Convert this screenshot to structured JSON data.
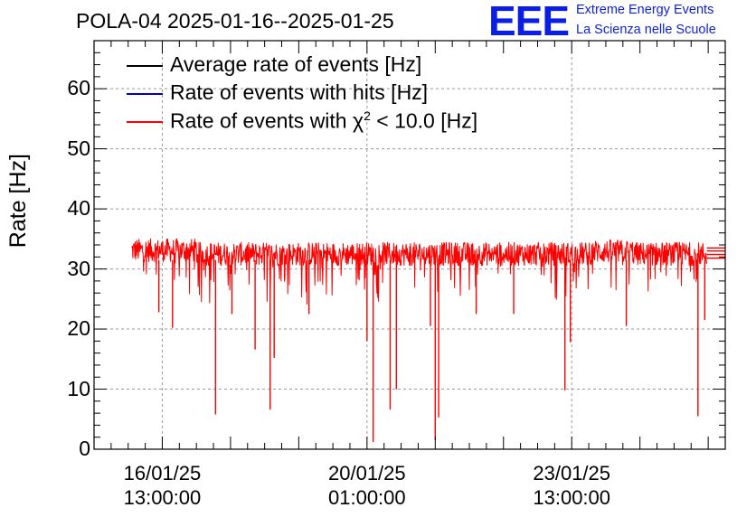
{
  "header": {
    "title": "POLA-04 2025-01-16--2025-01-25",
    "logo_text": "EEE",
    "logo_line1": "Extreme Energy Events",
    "logo_line2": "La Scienza nelle Scuole"
  },
  "colors": {
    "average": "#000000",
    "hits": "#0000cc",
    "chi2": "#ff0000",
    "logo": "#0b1ee8",
    "grid": "#9a9a9a"
  },
  "chart_data": {
    "type": "line",
    "title": "POLA-04 2025-01-16--2025-01-25",
    "ylabel": "Rate [Hz]",
    "xlabel": "",
    "ylim": [
      0,
      68
    ],
    "xlim_days": [
      0,
      9.25
    ],
    "grid": true,
    "yticks": [
      "0",
      "10",
      "20",
      "30",
      "40",
      "50",
      "60"
    ],
    "ytick_values": [
      0,
      10,
      20,
      30,
      40,
      50,
      60
    ],
    "xticks": [
      {
        "day": 1.0,
        "line1": "16/01/25",
        "line2": "13:00:00"
      },
      {
        "day": 4.0,
        "line1": "20/01/25",
        "line2": "01:00:00"
      },
      {
        "day": 7.0,
        "line1": "23/01/25",
        "line2": "13:00:00"
      }
    ],
    "legend": [
      {
        "name": "Average rate of events [Hz]",
        "color": "#000000"
      },
      {
        "name": "Rate of events with hits [Hz]",
        "color": "#0000cc"
      },
      {
        "name_pre": "Rate of events with ",
        "symbol": "χ",
        "sup": "2",
        "name_post": " < 10.0 [Hz]",
        "color": "#ff0000"
      }
    ],
    "series": [
      {
        "name": "Rate of events with χ2 < 10.0 [Hz]",
        "color": "#ff0000",
        "x_start_day": 0.55,
        "x_end_day": 8.98,
        "baseline_hz": 32.5,
        "band_hz": [
          30.5,
          34.5
        ],
        "dips": [
          {
            "day": 1.78,
            "value": 5.8
          },
          {
            "day": 2.02,
            "value": 22.5
          },
          {
            "day": 2.36,
            "value": 16.6
          },
          {
            "day": 2.58,
            "value": 6.6
          },
          {
            "day": 2.64,
            "value": 15.2
          },
          {
            "day": 1.15,
            "value": 20.2
          },
          {
            "day": 0.95,
            "value": 22.8
          },
          {
            "day": 3.15,
            "value": 22.5
          },
          {
            "day": 4.0,
            "value": 18.0
          },
          {
            "day": 4.09,
            "value": 1.2
          },
          {
            "day": 4.34,
            "value": 6.6
          },
          {
            "day": 4.43,
            "value": 10.0
          },
          {
            "day": 4.93,
            "value": 20.5
          },
          {
            "day": 5.0,
            "value": 1.5
          },
          {
            "day": 5.05,
            "value": 5.3
          },
          {
            "day": 5.6,
            "value": 22.5
          },
          {
            "day": 6.15,
            "value": 22.5
          },
          {
            "day": 6.9,
            "value": 9.8
          },
          {
            "day": 6.98,
            "value": 17.8
          },
          {
            "day": 7.8,
            "value": 20.5
          },
          {
            "day": 8.85,
            "value": 5.5
          },
          {
            "day": 8.95,
            "value": 21.5
          }
        ],
        "tail_levels_hz": [
          31.8,
          32.4,
          33.0,
          33.5
        ]
      }
    ]
  }
}
